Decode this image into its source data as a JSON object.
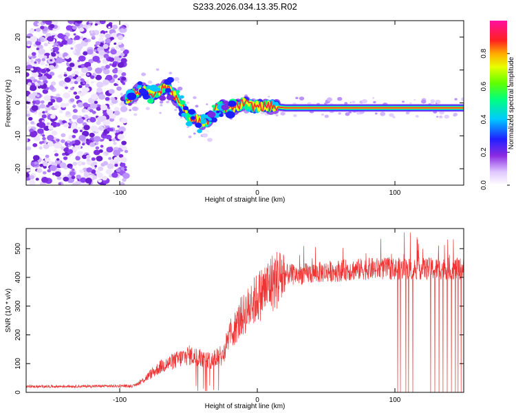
{
  "title": "S233.2026.034.13.35.R02",
  "chart_data": [
    {
      "type": "heatmap",
      "name": "spectrogram",
      "xlabel": "Height of straight line (km)",
      "ylabel": "Frequency (Hz)",
      "xlim": [
        -168,
        150
      ],
      "ylim": [
        -25,
        25
      ],
      "xticks": [
        -100,
        0,
        100
      ],
      "xtick_labels": [
        "-100",
        "0",
        "100"
      ],
      "yticks": [
        -20,
        -10,
        0,
        10,
        20
      ],
      "ytick_labels": [
        "-20",
        "-10",
        "0",
        "10",
        "20"
      ],
      "ridge": {
        "x": [
          -95,
          -85,
          -75,
          -65,
          -58,
          -50,
          -45,
          -40,
          -35,
          -30,
          -25,
          -20,
          -15,
          -10,
          -5,
          0,
          10,
          20,
          40,
          60,
          80,
          100,
          120,
          150
        ],
        "y": [
          1,
          4,
          3,
          5,
          1,
          -4,
          -5,
          -6,
          -5,
          -2,
          -1,
          -2,
          -1,
          0,
          -1,
          -1,
          -1,
          -1.5,
          -1.5,
          -1.5,
          -1.5,
          -1.5,
          -1.5,
          -1.5
        ]
      },
      "noise_region_x": [
        -168,
        -95
      ],
      "colorbar": {
        "label": "Normalized spectral amplitude",
        "range": [
          0.0,
          1.0
        ],
        "ticks": [
          0.0,
          0.2,
          0.4,
          0.6,
          0.8
        ],
        "tick_labels": [
          "0.0",
          "0.2",
          "0.4",
          "0.6",
          "0.8"
        ]
      }
    },
    {
      "type": "line",
      "name": "snr",
      "xlabel": "Height of straight line (km)",
      "ylabel": "SNR (10 * v/v)",
      "xlim": [
        -168,
        150
      ],
      "ylim": [
        0,
        570
      ],
      "xticks": [
        -100,
        0,
        100
      ],
      "xtick_labels": [
        "-100",
        "0",
        "100"
      ],
      "yticks": [
        0,
        100,
        200,
        300,
        400,
        500
      ],
      "ytick_labels": [
        "0",
        "100",
        "200",
        "300",
        "400",
        "500"
      ],
      "color": "#ee3333",
      "envelope": {
        "x": [
          -168,
          -90,
          -85,
          -70,
          -50,
          -35,
          -25,
          -20,
          -10,
          0,
          10,
          20,
          30,
          50,
          80,
          100,
          120,
          150
        ],
        "y": [
          20,
          22,
          35,
          90,
          130,
          110,
          130,
          200,
          270,
          330,
          380,
          410,
          410,
          420,
          430,
          430,
          430,
          430
        ]
      },
      "dropouts_x": [
        102,
        104,
        108,
        110,
        113,
        126,
        129,
        132,
        135,
        138,
        141,
        144,
        146,
        148
      ]
    }
  ]
}
